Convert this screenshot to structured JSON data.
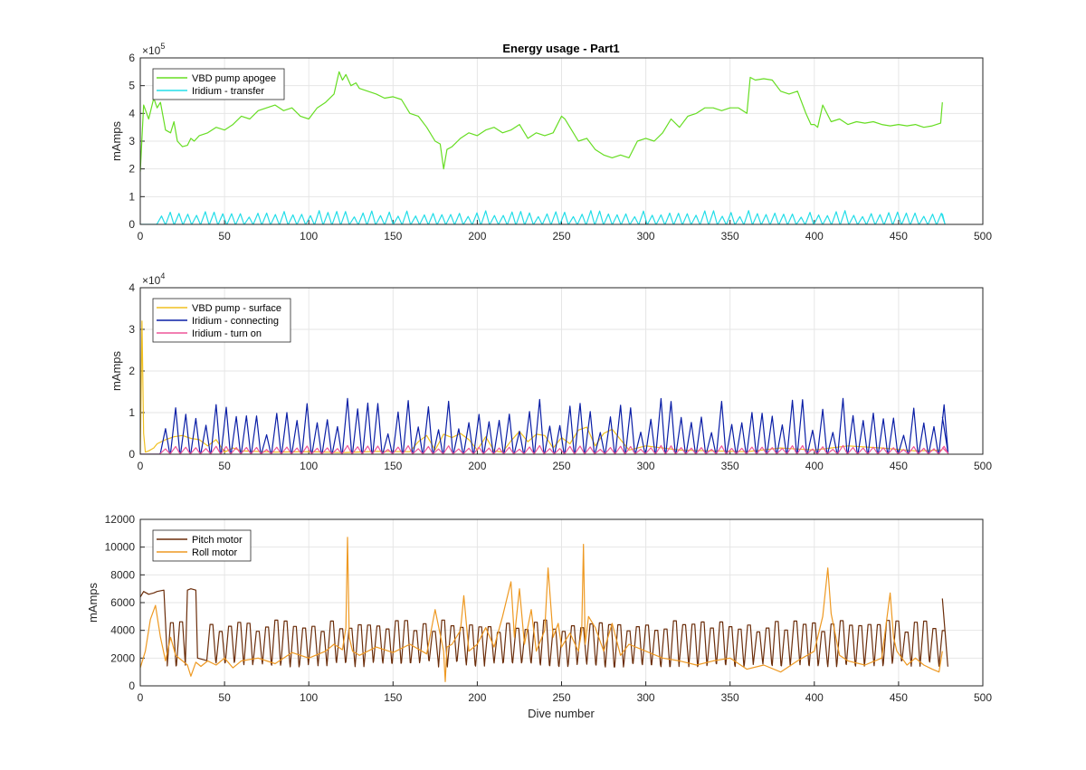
{
  "figure_title": "Energy usage - Part1",
  "xlabel": "Dive number",
  "chart_data": [
    {
      "type": "line",
      "title": "Energy usage - Part1",
      "ylabel": "mAmps",
      "exponent": "5",
      "xlim": [
        0,
        500
      ],
      "ylim": [
        0,
        600000
      ],
      "xticks": [
        "0",
        "50",
        "100",
        "150",
        "200",
        "250",
        "300",
        "350",
        "400",
        "450",
        "500"
      ],
      "yticks": [
        "0",
        "1",
        "2",
        "3",
        "4",
        "5",
        "6"
      ],
      "grid": true,
      "legend_position": "top-left",
      "series": [
        {
          "name": "VBD pump apogee",
          "color": "#66dd22",
          "x": [
            0,
            2,
            5,
            8,
            10,
            12,
            15,
            18,
            20,
            22,
            25,
            28,
            30,
            32,
            35,
            40,
            45,
            50,
            55,
            60,
            65,
            70,
            75,
            80,
            85,
            90,
            95,
            100,
            105,
            110,
            115,
            118,
            120,
            122,
            125,
            128,
            130,
            135,
            140,
            145,
            150,
            155,
            160,
            165,
            170,
            175,
            178,
            180,
            182,
            185,
            190,
            195,
            200,
            205,
            210,
            215,
            220,
            225,
            230,
            235,
            240,
            245,
            250,
            252,
            255,
            260,
            265,
            270,
            275,
            280,
            285,
            290,
            295,
            300,
            305,
            310,
            315,
            320,
            325,
            330,
            335,
            340,
            345,
            350,
            355,
            360,
            362,
            365,
            370,
            375,
            380,
            385,
            390,
            395,
            398,
            400,
            402,
            405,
            410,
            415,
            420,
            425,
            430,
            435,
            440,
            445,
            450,
            455,
            460,
            465,
            470,
            475,
            476
          ],
          "y": [
            190000,
            430000,
            380000,
            455000,
            420000,
            440000,
            340000,
            330000,
            370000,
            300000,
            280000,
            285000,
            310000,
            300000,
            320000,
            330000,
            350000,
            340000,
            360000,
            390000,
            380000,
            410000,
            420000,
            430000,
            410000,
            420000,
            390000,
            380000,
            420000,
            440000,
            470000,
            550000,
            520000,
            540000,
            500000,
            510000,
            490000,
            480000,
            470000,
            455000,
            460000,
            450000,
            400000,
            390000,
            350000,
            300000,
            290000,
            200000,
            270000,
            280000,
            310000,
            330000,
            320000,
            340000,
            350000,
            330000,
            340000,
            360000,
            310000,
            330000,
            320000,
            330000,
            390000,
            380000,
            350000,
            300000,
            310000,
            270000,
            250000,
            240000,
            250000,
            240000,
            300000,
            310000,
            300000,
            330000,
            380000,
            350000,
            390000,
            400000,
            420000,
            420000,
            410000,
            420000,
            420000,
            400000,
            530000,
            520000,
            525000,
            520000,
            480000,
            470000,
            480000,
            400000,
            360000,
            360000,
            350000,
            430000,
            370000,
            380000,
            360000,
            370000,
            365000,
            370000,
            360000,
            355000,
            360000,
            355000,
            360000,
            350000,
            355000,
            365000,
            440000
          ]
        },
        {
          "name": "Iridium - transfer",
          "color": "#22dde8",
          "pattern": "spikes",
          "x_start": 10,
          "x_end": 476,
          "period": 5.2,
          "baseline": 2000,
          "peak": 38000,
          "peak_var": 12000
        }
      ]
    },
    {
      "type": "line",
      "ylabel": "mAmps",
      "exponent": "4",
      "xlim": [
        0,
        500
      ],
      "ylim": [
        0,
        40000
      ],
      "xticks": [
        "0",
        "50",
        "100",
        "150",
        "200",
        "250",
        "300",
        "350",
        "400",
        "450",
        "500"
      ],
      "yticks": [
        "0",
        "1",
        "2",
        "3",
        "4"
      ],
      "grid": true,
      "legend_position": "top-left",
      "series": [
        {
          "name": "VBD pump - surface",
          "color": "#f0c020",
          "x": [
            0,
            1,
            2,
            3,
            5,
            8,
            10,
            15,
            20,
            25,
            30,
            35,
            40,
            45,
            50,
            55,
            60,
            80,
            100,
            120,
            140,
            160,
            165,
            170,
            175,
            180,
            185,
            190,
            195,
            200,
            205,
            210,
            215,
            220,
            225,
            230,
            235,
            240,
            245,
            250,
            255,
            260,
            265,
            270,
            275,
            280,
            285,
            290,
            300,
            320,
            340,
            360,
            380,
            400,
            420,
            440,
            460,
            476
          ],
          "y": [
            0,
            32000,
            5000,
            500,
            800,
            1500,
            2500,
            3500,
            4200,
            4500,
            3800,
            3500,
            2000,
            3500,
            500,
            1500,
            800,
            500,
            600,
            400,
            700,
            600,
            3000,
            4500,
            1000,
            4800,
            4000,
            5000,
            3500,
            1000,
            4200,
            800,
            500,
            3200,
            5500,
            3000,
            4800,
            4500,
            1500,
            4000,
            2500,
            5800,
            6500,
            2000,
            5000,
            6000,
            3500,
            1000,
            2000,
            1000,
            800,
            600,
            1500,
            1000,
            2000,
            1500,
            800,
            1000
          ]
        },
        {
          "name": "Iridium - connecting",
          "color": "#0a1ea6",
          "pattern": "spikes",
          "x_start": 12,
          "x_end": 476,
          "period": 6.0,
          "baseline": 300,
          "peak": 9000,
          "peak_var": 4500
        },
        {
          "name": "Iridium - turn on",
          "color": "#ee5599",
          "pattern": "spikes",
          "x_start": 12,
          "x_end": 476,
          "period": 6.0,
          "baseline": 200,
          "peak": 1600,
          "peak_var": 500
        }
      ]
    },
    {
      "type": "line",
      "ylabel": "mAmps",
      "xlim": [
        0,
        500
      ],
      "ylim": [
        0,
        12000
      ],
      "xticks": [
        "0",
        "50",
        "100",
        "150",
        "200",
        "250",
        "300",
        "350",
        "400",
        "450",
        "500"
      ],
      "yticks": [
        "0",
        "2000",
        "4000",
        "6000",
        "8000",
        "10000",
        "12000"
      ],
      "grid": true,
      "legend_position": "top-left",
      "series": [
        {
          "name": "Pitch motor",
          "color": "#6b2d0a",
          "pattern": "oscillate",
          "head_x": [
            0,
            2,
            5,
            8,
            10,
            14,
            16
          ],
          "head_y": [
            6400,
            6800,
            6600,
            6700,
            6800,
            6900,
            2000
          ],
          "mid_x": [
            28,
            30,
            33,
            34
          ],
          "mid_y": [
            6900,
            7000,
            6900,
            2000
          ],
          "x_start": 16,
          "x_end": 475,
          "period": 5.5,
          "low": 1600,
          "high": 4300,
          "tail_x": 476,
          "tail_y": 6300
        },
        {
          "name": "Roll motor",
          "color": "#ee9922",
          "x": [
            0,
            3,
            6,
            9,
            12,
            15,
            18,
            21,
            25,
            28,
            30,
            33,
            36,
            40,
            45,
            50,
            55,
            60,
            70,
            80,
            90,
            100,
            110,
            115,
            120,
            122,
            123,
            124,
            126,
            130,
            140,
            150,
            160,
            170,
            175,
            180,
            181,
            182,
            185,
            190,
            192,
            195,
            200,
            205,
            210,
            215,
            220,
            222,
            225,
            228,
            232,
            235,
            240,
            242,
            245,
            248,
            250,
            255,
            260,
            262,
            263,
            264,
            266,
            270,
            275,
            280,
            285,
            290,
            300,
            310,
            320,
            330,
            340,
            350,
            360,
            370,
            380,
            390,
            400,
            405,
            408,
            410,
            412,
            415,
            420,
            430,
            440,
            445,
            447,
            449,
            452,
            455,
            460,
            465,
            470,
            474,
            476
          ],
          "y": [
            1300,
            2500,
            4800,
            5800,
            3500,
            1800,
            3500,
            2200,
            1800,
            1500,
            700,
            1700,
            1400,
            1800,
            1500,
            2000,
            1300,
            1800,
            2000,
            1600,
            2400,
            2000,
            2500,
            3000,
            2600,
            4200,
            10700,
            3500,
            2500,
            2200,
            2800,
            2400,
            3000,
            2300,
            5500,
            2500,
            300,
            2800,
            3000,
            4000,
            6500,
            2500,
            3000,
            4200,
            2800,
            5000,
            7500,
            3500,
            7000,
            3000,
            5500,
            2500,
            4000,
            8500,
            3500,
            4500,
            2800,
            3800,
            2500,
            4000,
            10200,
            3000,
            5000,
            4200,
            2500,
            4500,
            2200,
            3000,
            2500,
            2000,
            1800,
            1500,
            1800,
            2000,
            1200,
            1500,
            1000,
            1800,
            2500,
            5000,
            8500,
            5200,
            4000,
            2200,
            1800,
            1500,
            2000,
            6700,
            3500,
            2500,
            2000,
            1500,
            2000,
            1500,
            1200,
            1000,
            2500
          ]
        }
      ]
    }
  ]
}
